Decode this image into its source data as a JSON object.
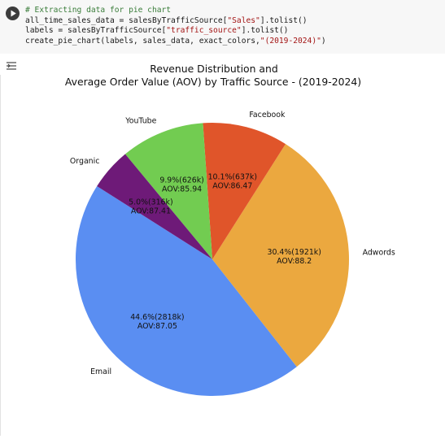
{
  "code_cell": {
    "comment": "# Extracting data for pie chart",
    "line2_prefix": "all_time_sales_data = salesByTrafficSource[",
    "line2_key": "\"Sales\"",
    "line2_suffix": "].tolist()",
    "line3_prefix": "labels = salesByTrafficSource[",
    "line3_key": "\"traffic_source\"",
    "line3_suffix": "].tolist()",
    "line4_prefix": "create_pie_chart(labels, sales_data, exact_colors,",
    "line4_arg": "\"(2019-2024)\"",
    "line4_suffix": ")"
  },
  "chart_data": {
    "type": "pie",
    "title_line1": "Revenue Distribution and",
    "title_line2": "Average Order Value (AOV) by Traffic Source - (2019-2024)",
    "start_angle_deg": 147.6,
    "direction": "counterclockwise",
    "slices": [
      {
        "label": "Email",
        "percent": 44.6,
        "value_label": "2818k",
        "aov": "87.05",
        "color": "#5a8ef2"
      },
      {
        "label": "Adwords",
        "percent": 30.4,
        "value_label": "1921k",
        "aov": "88.2",
        "color": "#eba83f"
      },
      {
        "label": "Facebook",
        "percent": 10.1,
        "value_label": "637k",
        "aov": "86.47",
        "color": "#e0552a"
      },
      {
        "label": "YouTube",
        "percent": 9.9,
        "value_label": "626k",
        "aov": "85.94",
        "color": "#72cc51"
      },
      {
        "label": "Organic",
        "percent": 5.0,
        "value_label": "316k",
        "aov": "87.41",
        "color": "#6e1a78"
      }
    ]
  }
}
